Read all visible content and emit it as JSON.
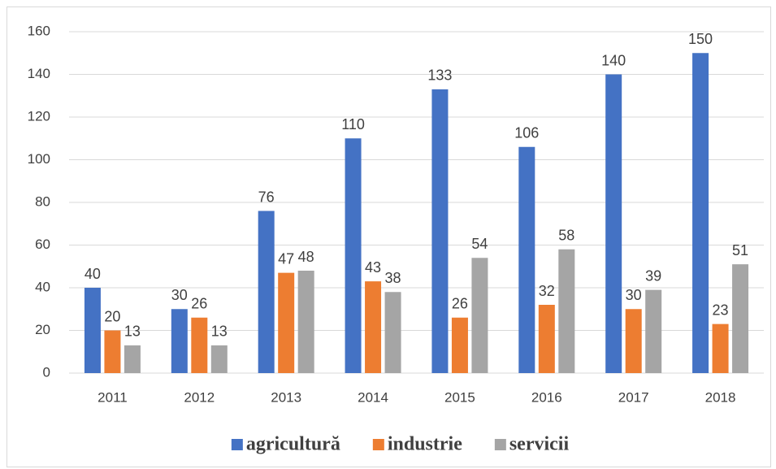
{
  "chart_data": {
    "type": "bar",
    "categories": [
      "2011",
      "2012",
      "2013",
      "2014",
      "2015",
      "2016",
      "2017",
      "2018"
    ],
    "series": [
      {
        "name": "agricultură",
        "color": "#4472c4",
        "values": [
          40,
          30,
          76,
          110,
          133,
          106,
          140,
          150
        ]
      },
      {
        "name": "industrie",
        "color": "#ed7d31",
        "values": [
          20,
          26,
          47,
          43,
          26,
          32,
          30,
          23
        ]
      },
      {
        "name": "servicii",
        "color": "#a5a5a5",
        "values": [
          13,
          13,
          48,
          38,
          54,
          58,
          39,
          51
        ]
      }
    ],
    "ylim": [
      0,
      160
    ],
    "yticks": [
      0,
      20,
      40,
      60,
      80,
      100,
      120,
      140,
      160
    ],
    "grid": true,
    "legend": "bottom"
  }
}
